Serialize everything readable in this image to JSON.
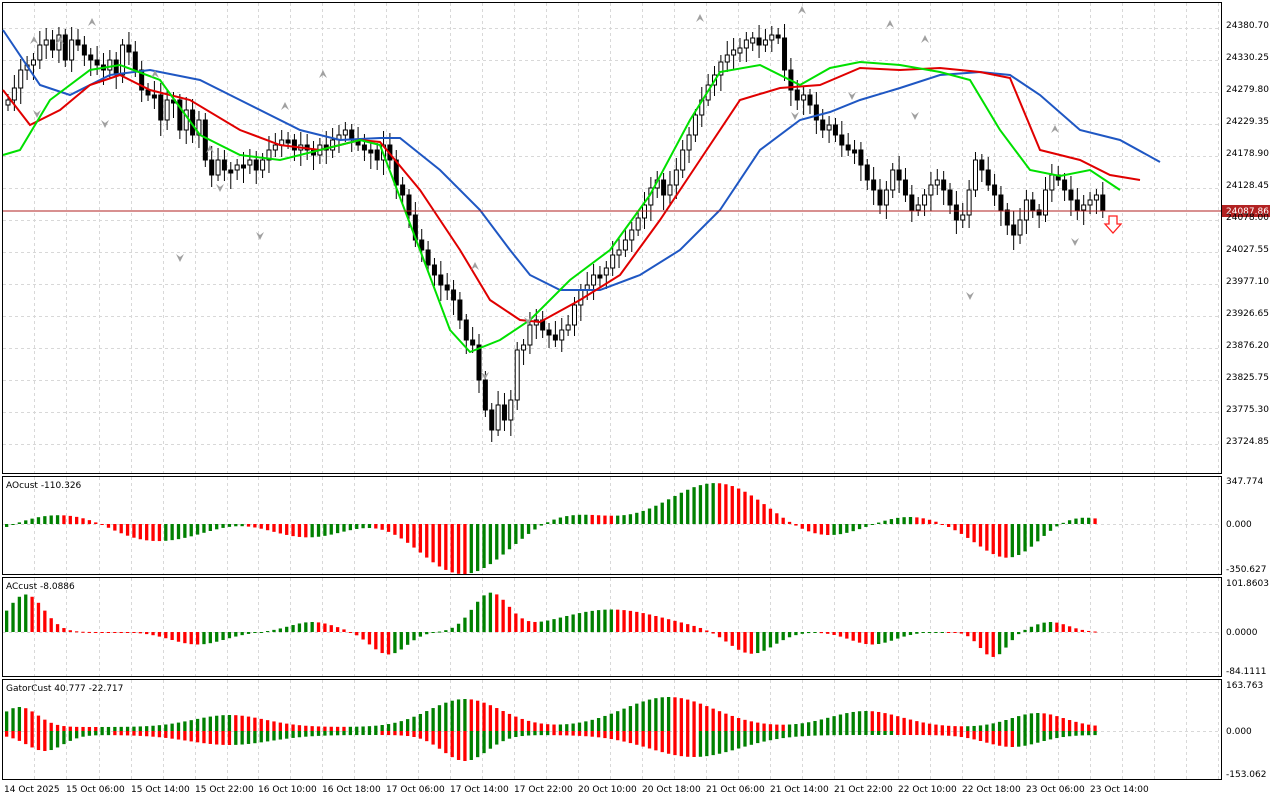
{
  "colors": {
    "bull": "#008000",
    "bear": "#ff0000",
    "ma_blue": "#1f57c3",
    "ma_red": "#e00000",
    "ma_green": "#00e000",
    "price_line": "#b22222",
    "grid": "#d8d8d8",
    "fractal": "#a0a0a0"
  },
  "main_chart": {
    "price_ticks": [
      "24380.70",
      "24330.25",
      "24279.80",
      "24229.35",
      "24178.90",
      "24128.45",
      "24078.00",
      "24027.55",
      "23977.10",
      "23926.65",
      "23876.20",
      "23825.75",
      "23775.30",
      "23724.85"
    ],
    "current_price": "24087.86",
    "signal_arrow": "down-arrow"
  },
  "indicators": {
    "ao": {
      "label": "AOcust -110.326",
      "max": "347.774",
      "zero": "0.000",
      "min": "-350.627"
    },
    "ac": {
      "label": "ACcust -8.0886",
      "max": "101.8603",
      "zero": "0.0000",
      "min": "-84.1111"
    },
    "gator": {
      "label": "GatorCust 40.777 -22.717",
      "max": "163.763",
      "zero": "0.000",
      "min": "-153.062"
    }
  },
  "time_axis": [
    "14 Oct 2025",
    "15 Oct 06:00",
    "15 Oct 14:00",
    "15 Oct 22:00",
    "16 Oct 10:00",
    "16 Oct 18:00",
    "17 Oct 06:00",
    "17 Oct 14:00",
    "17 Oct 22:00",
    "20 Oct 10:00",
    "20 Oct 18:00",
    "21 Oct 06:00",
    "21 Oct 14:00",
    "21 Oct 22:00",
    "22 Oct 10:00",
    "22 Oct 18:00",
    "23 Oct 06:00",
    "23 Oct 14:00"
  ]
}
